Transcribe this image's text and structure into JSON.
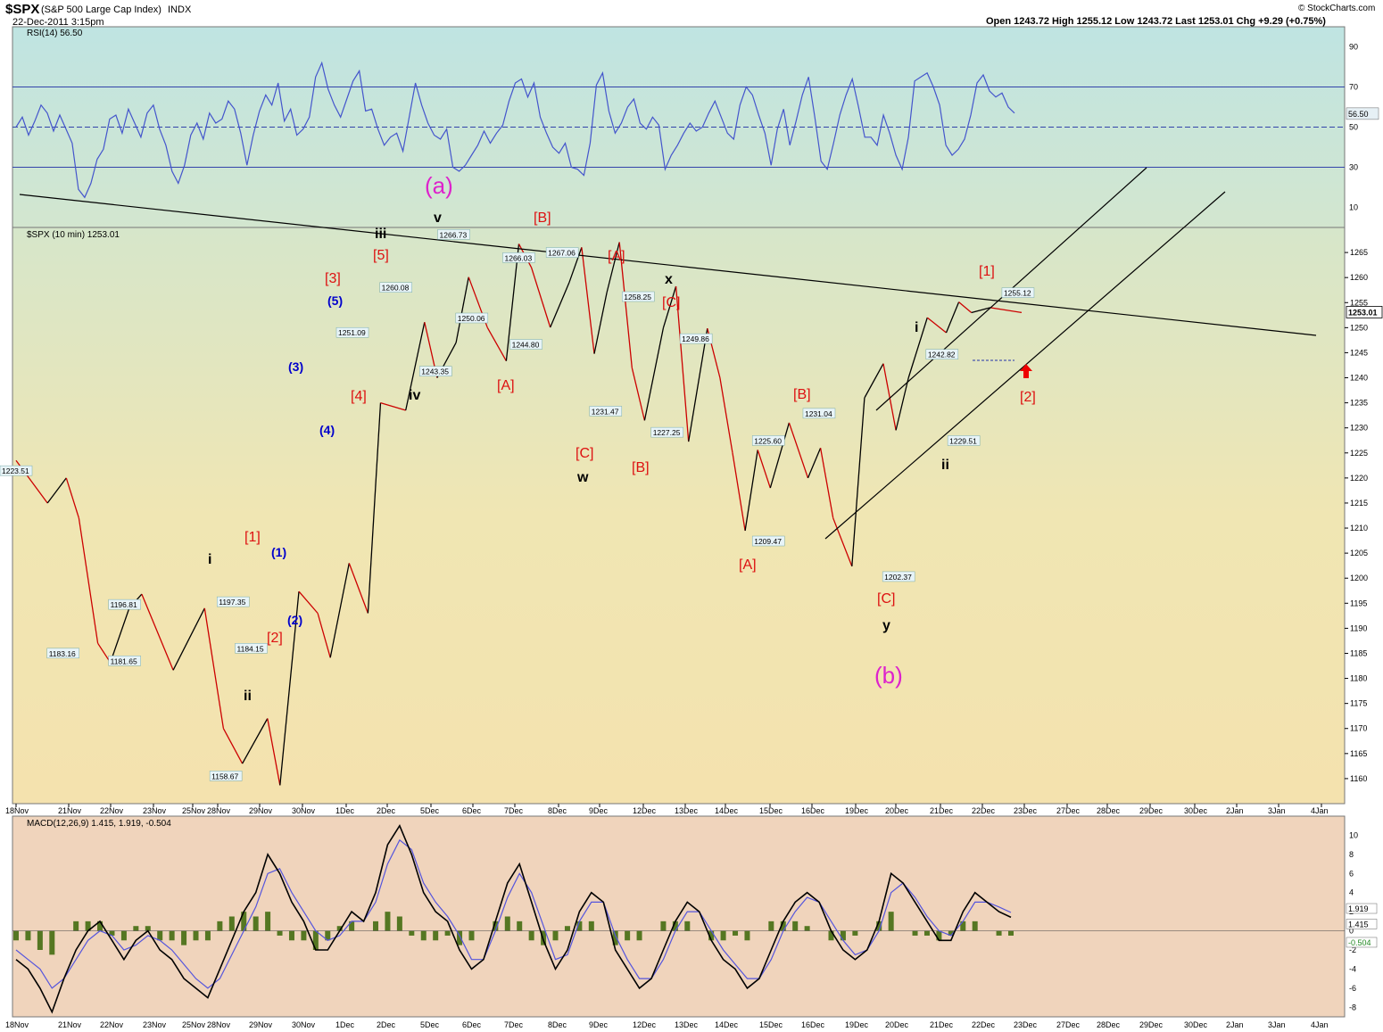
{
  "header": {
    "symbol": "$SPX",
    "name": "(S&P 500 Large Cap Index)",
    "exchange": "INDX",
    "date": "22-Dec-2011 3:15pm",
    "ohlc_text": "Open 1243.72  High 1255.12  Low 1243.72  Last 1253.01  Chg +9.29 (+0.75%)",
    "watermark": "© StockCharts.com",
    "price_label": "$SPX (10 min) 1253.01",
    "rsi_label": "RSI(14) 56.50",
    "macd_label": "MACD(12,26,9) 1.415, 1.919, -0.504"
  },
  "colors": {
    "rsi_line": "#4455cc",
    "price_up": "#000000",
    "price_down": "#cc0000",
    "wave_red": "#dd1111",
    "wave_blue": "#0000cc",
    "wave_magenta": "#dd22cc",
    "macd_line": "#000000",
    "signal_line": "#5555dd",
    "histogram": "#557722"
  },
  "chart_data": [
    {
      "type": "line",
      "title": "RSI(14) 56.50",
      "ylim": [
        0,
        100
      ],
      "yticks": [
        10,
        30,
        50,
        70,
        90
      ],
      "reference_lines": [
        30,
        50,
        70
      ],
      "last_value_label": "56.50",
      "values": [
        50,
        55,
        46,
        53,
        61,
        57,
        48,
        56,
        49,
        42,
        19,
        15,
        22,
        34,
        39,
        54,
        56,
        47,
        59,
        52,
        45,
        57,
        61,
        49,
        41,
        28,
        22,
        31,
        46,
        52,
        44,
        57,
        52,
        54,
        63,
        59,
        47,
        31,
        46,
        58,
        66,
        61,
        72,
        53,
        59,
        46,
        49,
        55,
        75,
        82,
        69,
        61,
        55,
        64,
        73,
        78,
        58,
        59,
        49,
        41,
        45,
        47,
        38,
        55,
        72,
        61,
        52,
        46,
        44,
        49,
        30,
        28,
        31,
        36,
        41,
        48,
        42,
        47,
        51,
        63,
        72,
        74,
        65,
        72,
        55,
        47,
        40,
        37,
        42,
        30,
        29,
        26,
        42,
        71,
        77,
        58,
        47,
        52,
        60,
        64,
        52,
        49,
        55,
        51,
        29,
        36,
        41,
        47,
        52,
        48,
        50,
        57,
        63,
        55,
        47,
        44,
        61,
        70,
        66,
        56,
        47,
        31,
        49,
        59,
        41,
        53,
        66,
        75,
        55,
        33,
        29,
        42,
        56,
        66,
        74,
        60,
        45,
        45,
        41,
        56,
        47,
        36,
        29,
        45,
        73,
        75,
        77,
        70,
        61,
        41,
        36,
        39,
        44,
        56,
        72,
        76,
        68,
        65,
        67,
        60,
        57
      ],
      "last_x_index": 160
    },
    {
      "type": "line",
      "title": "$SPX (10 min) 1253.01",
      "ylim": [
        1155,
        1270
      ],
      "yticks": [
        1160,
        1165,
        1170,
        1175,
        1180,
        1185,
        1190,
        1195,
        1200,
        1205,
        1210,
        1215,
        1220,
        1225,
        1230,
        1235,
        1240,
        1245,
        1250,
        1255,
        1260,
        1265
      ],
      "x_labels": [
        "18Nov",
        "21Nov",
        "22Nov",
        "23Nov",
        "25Nov",
        "28Nov",
        "29Nov",
        "30Nov",
        "1Dec",
        "2Dec",
        "5Dec",
        "6Dec",
        "7Dec",
        "8Dec",
        "9Dec",
        "12Dec",
        "13Dec",
        "14Dec",
        "15Dec",
        "16Dec",
        "19Dec",
        "20Dec",
        "21Dec",
        "22Dec",
        "23Dec",
        "27Dec",
        "28Dec",
        "29Dec",
        "30Dec",
        "2Jan",
        "3Jan",
        "4Jan"
      ],
      "x": [
        0,
        5,
        8,
        10,
        13,
        15,
        18,
        20,
        25,
        30,
        33,
        36,
        40,
        42,
        45,
        48,
        50,
        53,
        56,
        58,
        62,
        65,
        67,
        70,
        72,
        75,
        78,
        80,
        82,
        85,
        88,
        90,
        92,
        94,
        96,
        98,
        100,
        103,
        105,
        107,
        110,
        112,
        114,
        116,
        118,
        120,
        123,
        126,
        128,
        130,
        133,
        135,
        138,
        140,
        142,
        145,
        148,
        150,
        152,
        155,
        160
      ],
      "values": [
        1223.51,
        1215,
        1220,
        1212,
        1187,
        1183.16,
        1194,
        1196.81,
        1181.65,
        1194,
        1170,
        1163,
        1172,
        1158.67,
        1197.35,
        1193,
        1184.15,
        1203,
        1193,
        1235,
        1233.5,
        1251.09,
        1240,
        1247,
        1260.08,
        1250,
        1243.35,
        1266.73,
        1262,
        1250.06,
        1259,
        1266.03,
        1244.8,
        1257,
        1267.06,
        1242,
        1231.47,
        1250,
        1258.25,
        1227.25,
        1249.86,
        1240,
        1225,
        1209.47,
        1225.6,
        1218,
        1231.04,
        1220,
        1226,
        1212,
        1202.37,
        1236,
        1242.82,
        1229.51,
        1240,
        1252,
        1249,
        1255.12,
        1253,
        1254,
        1253.01
      ],
      "last_value_label": "1253.01",
      "extrema_labels": [
        {
          "x": 0,
          "value": 1223.51,
          "text": "1223.51"
        },
        {
          "x": 13,
          "value": 1183.16,
          "text": "1183.16"
        },
        {
          "x": 30,
          "value": 1196.81,
          "text": "1196.81"
        },
        {
          "x": 30,
          "value": 1181.65,
          "text": "1181.65"
        },
        {
          "x": 58,
          "value": 1158.67,
          "text": "1158.67"
        },
        {
          "x": 60,
          "value": 1197.35,
          "text": "1197.35"
        },
        {
          "x": 65,
          "value": 1184.15,
          "text": "1184.15"
        },
        {
          "x": 93,
          "value": 1251.09,
          "text": "1251.09"
        },
        {
          "x": 105,
          "value": 1260.08,
          "text": "1260.08"
        },
        {
          "x": 116,
          "value": 1243.35,
          "text": "1243.35"
        },
        {
          "x": 121,
          "value": 1266.73,
          "text": "1266.73"
        },
        {
          "x": 126,
          "value": 1250.06,
          "text": "1250.06"
        },
        {
          "x": 139,
          "value": 1266.03,
          "text": "1266.03"
        },
        {
          "x": 141,
          "value": 1244.8,
          "text": "1244.80"
        },
        {
          "x": 151,
          "value": 1267.06,
          "text": "1267.06"
        },
        {
          "x": 163,
          "value": 1231.47,
          "text": "1231.47"
        },
        {
          "x": 172,
          "value": 1258.25,
          "text": "1258.25"
        },
        {
          "x": 180,
          "value": 1227.25,
          "text": "1227.25"
        },
        {
          "x": 188,
          "value": 1249.86,
          "text": "1249.86"
        },
        {
          "x": 208,
          "value": 1225.6,
          "text": "1225.60"
        },
        {
          "x": 208,
          "value": 1209.47,
          "text": "1209.47"
        },
        {
          "x": 222,
          "value": 1231.04,
          "text": "1231.04"
        },
        {
          "x": 244,
          "value": 1202.37,
          "text": "1202.37"
        },
        {
          "x": 256,
          "value": 1242.82,
          "text": "1242.82"
        },
        {
          "x": 262,
          "value": 1229.51,
          "text": "1229.51"
        },
        {
          "x": 277,
          "value": 1255.12,
          "text": "1255.12"
        }
      ]
    },
    {
      "type": "line",
      "title": "MACD(12,26,9) 1.415, 1.919, -0.504",
      "ylim": [
        -9,
        12
      ],
      "yticks": [
        -8,
        -6,
        -4,
        -2,
        0,
        2,
        4,
        6,
        8,
        10
      ],
      "series": [
        {
          "name": "MACD",
          "values": [
            -3,
            -4,
            -6,
            -8.5,
            -5,
            -2,
            0,
            1,
            -1,
            -3,
            -1,
            0,
            -2,
            -3,
            -5,
            -6,
            -7,
            -4,
            -1,
            2,
            4,
            8,
            6,
            3,
            1,
            -2,
            -2,
            0,
            2,
            1,
            4,
            9,
            11,
            8,
            4,
            2,
            1,
            -2,
            -4,
            -3,
            1,
            5,
            7,
            3,
            -1,
            -4,
            -2,
            2,
            4,
            3,
            -2,
            -4,
            -6,
            -5,
            -2,
            1,
            3,
            2,
            -1,
            -3,
            -4,
            -6,
            -5,
            -2,
            1,
            3,
            4,
            3,
            0,
            -2,
            -3,
            -2,
            1,
            6,
            5,
            3,
            1,
            -1,
            -1,
            2,
            4,
            3,
            2,
            1.415
          ]
        },
        {
          "name": "Signal",
          "values": [
            -2,
            -3,
            -4,
            -6,
            -5,
            -3,
            -1,
            0,
            -0.5,
            -2,
            -1.5,
            -0.5,
            -1,
            -2,
            -3.5,
            -5,
            -6,
            -5,
            -2.5,
            0,
            2.5,
            6,
            6.5,
            4,
            2,
            0,
            -1,
            -0.5,
            1,
            1,
            3,
            7,
            9.5,
            8.5,
            5,
            3,
            1.5,
            -0.5,
            -3,
            -3,
            0,
            3.5,
            6,
            4,
            0.5,
            -3,
            -2.5,
            1,
            3,
            3,
            -0.5,
            -3,
            -5,
            -5,
            -3,
            0,
            2,
            2,
            0,
            -2,
            -3.5,
            -5,
            -5,
            -3,
            0,
            2,
            3.5,
            3,
            1,
            -1,
            -2.5,
            -2,
            0,
            4,
            5,
            3.5,
            1.5,
            0,
            -0.5,
            1,
            3,
            3,
            2.5,
            1.919
          ]
        },
        {
          "name": "Histogram",
          "values": [
            -1,
            -1,
            -2,
            -2.5,
            0,
            1,
            1,
            1,
            -0.5,
            -1,
            0.5,
            0.5,
            -1,
            -1,
            -1.5,
            -1,
            -1,
            1,
            1.5,
            2,
            1.5,
            2,
            -0.5,
            -1,
            -1,
            -2,
            -1,
            0.5,
            1,
            0,
            1,
            2,
            1.5,
            -0.5,
            -1,
            -1,
            -0.5,
            -1.5,
            -1,
            0,
            1,
            1.5,
            1,
            -1,
            -1.5,
            -1,
            0.5,
            1,
            1,
            0,
            -1.5,
            -1,
            -1,
            0,
            1,
            1,
            1,
            0,
            -1,
            -1,
            -0.5,
            -1,
            0,
            1,
            1,
            1,
            0.5,
            0,
            -1,
            -1,
            -0.5,
            0,
            1,
            2,
            0,
            -0.5,
            -0.5,
            -1,
            -0.5,
            1,
            1,
            0,
            -0.5,
            -0.504
          ]
        }
      ],
      "value_labels": [
        "1.919",
        "1.415",
        "-0.504"
      ]
    }
  ],
  "wave_labels": [
    {
      "text": "(a)",
      "color": "magenta"
    },
    {
      "text": "v",
      "color": "black"
    },
    {
      "text": "iii",
      "color": "black"
    },
    {
      "text": "[B]",
      "color": "red"
    },
    {
      "text": "[A]",
      "color": "red"
    },
    {
      "text": "x",
      "color": "black"
    },
    {
      "text": "[C]",
      "color": "red"
    },
    {
      "text": "[5]",
      "color": "red"
    },
    {
      "text": "[3]",
      "color": "red"
    },
    {
      "text": "(5)",
      "color": "blue"
    },
    {
      "text": "(3)",
      "color": "blue"
    },
    {
      "text": "[4]",
      "color": "red"
    },
    {
      "text": "iv",
      "color": "black"
    },
    {
      "text": "(4)",
      "color": "blue"
    },
    {
      "text": "[A]",
      "color": "red"
    },
    {
      "text": "[C]",
      "color": "red"
    },
    {
      "text": "w",
      "color": "black"
    },
    {
      "text": "[B]",
      "color": "red"
    },
    {
      "text": "[B]",
      "color": "red"
    },
    {
      "text": "[A]",
      "color": "red"
    },
    {
      "text": "[C]",
      "color": "red"
    },
    {
      "text": "y",
      "color": "black"
    },
    {
      "text": "(b)",
      "color": "magenta"
    },
    {
      "text": "i",
      "color": "black"
    },
    {
      "text": "ii",
      "color": "black"
    },
    {
      "text": "[1]",
      "color": "red"
    },
    {
      "text": "[2]",
      "color": "red"
    },
    {
      "text": "[1]",
      "color": "red"
    },
    {
      "text": "(1)",
      "color": "blue"
    },
    {
      "text": "(2)",
      "color": "blue"
    },
    {
      "text": "[2]",
      "color": "red"
    },
    {
      "text": "i",
      "color": "black"
    },
    {
      "text": "ii",
      "color": "black"
    }
  ]
}
